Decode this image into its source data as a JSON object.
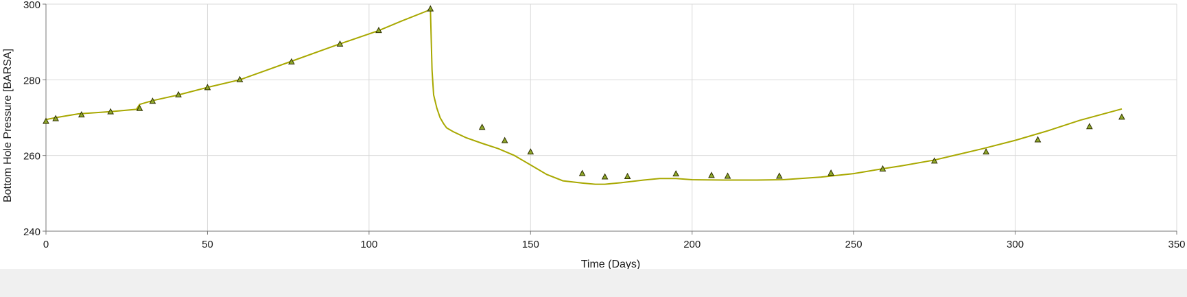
{
  "chart_data": {
    "type": "line",
    "title": "",
    "xlabel": "Time (Days)",
    "ylabel": "Bottom Hole Pressure [BARSA]",
    "xlim": [
      0,
      350
    ],
    "ylim": [
      240,
      300
    ],
    "xticks": [
      0,
      50,
      100,
      150,
      200,
      250,
      300,
      350
    ],
    "yticks": [
      240,
      260,
      280,
      300
    ],
    "grid": true,
    "legend": "none",
    "colors": {
      "line": "#a8a800",
      "marker_fill": "#8fa82a",
      "marker_stroke": "#2e2e00",
      "grid": "#d9d9d9",
      "axis": "#777777"
    },
    "series": [
      {
        "kind": "line",
        "x": [
          0,
          3,
          10,
          20,
          28,
          29,
          33,
          41,
          50,
          60,
          75,
          90,
          103,
          110,
          118,
          119,
          119.5,
          120,
          121,
          122,
          123,
          124,
          126,
          130,
          135,
          140,
          145,
          150,
          155,
          160,
          166,
          170,
          173,
          178,
          185,
          190,
          195,
          200,
          210,
          220,
          228,
          240,
          250,
          259,
          265,
          275,
          290,
          300,
          310,
          320,
          333
        ],
        "y": [
          269.5,
          270,
          271,
          271.6,
          272.2,
          273.5,
          274.5,
          276,
          278,
          280,
          284.6,
          289.2,
          293,
          295.5,
          298.2,
          298.8,
          282.5,
          276,
          272.5,
          270,
          268.5,
          267.3,
          266.3,
          264.7,
          263.2,
          261.8,
          260,
          257.5,
          255,
          253.3,
          252.7,
          252.4,
          252.4,
          252.8,
          253.5,
          253.9,
          253.9,
          253.6,
          253.5,
          253.5,
          253.6,
          254.3,
          255.2,
          256.5,
          257.3,
          258.8,
          261.8,
          264,
          266.5,
          269.3,
          272.3
        ]
      },
      {
        "kind": "observed",
        "x": [
          0,
          3,
          11,
          20,
          29,
          33,
          41,
          50,
          60,
          76,
          91,
          103,
          119,
          135,
          142,
          150,
          166,
          173,
          180,
          195,
          206,
          211,
          227,
          243,
          259,
          275,
          291,
          307,
          323,
          333
        ],
        "y": [
          269.1,
          269.8,
          270.8,
          271.6,
          272.5,
          274.4,
          276.1,
          278,
          280.1,
          284.8,
          289.5,
          293.1,
          298.8,
          267.5,
          264,
          261,
          255.3,
          254.4,
          254.5,
          255.2,
          254.8,
          254.6,
          254.6,
          255.4,
          256.5,
          258.6,
          261,
          264.2,
          267.7,
          270.2
        ]
      }
    ]
  }
}
